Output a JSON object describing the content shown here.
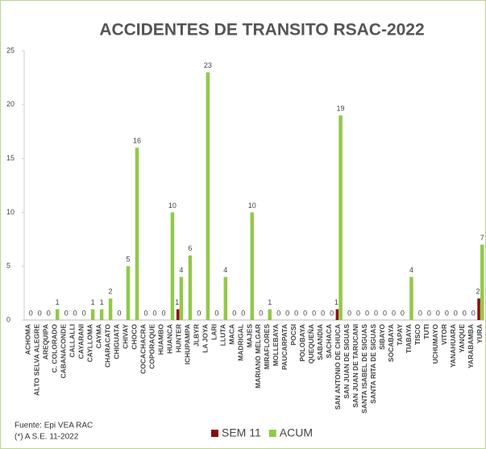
{
  "chart_data": {
    "type": "bar",
    "title": "ACCIDENTES DE TRANSITO RSAC-2022",
    "categories": [
      "ACHOMA",
      "ALTO SELVA ALEGRE",
      "AREQUIPA",
      "C. COLORADO",
      "CABANACONDE",
      "CALLALLI",
      "CAYARANI",
      "CAYLLOMA",
      "CAYMA",
      "CHARACATO",
      "CHIGUATA",
      "CHIVAY",
      "CHOCO",
      "COCACHACRA",
      "COPORAQUE",
      "HUAMBO",
      "HUANCA",
      "HUNTER",
      "ICHUPAMPA",
      "JLBYR",
      "LA JOYA",
      "LARI",
      "LLUTA",
      "MACA",
      "MADRIGAL",
      "MAJES",
      "MARIANO MELGAR",
      "MIRAFLORES",
      "MOLLEBAYA",
      "PAUCARPATA",
      "POCSI",
      "POLOBAYA",
      "QUEQUEÑA",
      "SABANDIA",
      "SACHACA",
      "SAN ANTONIO DE CHUCA",
      "SAN JUAN DE SIGUAS",
      "SAN JUAN DE TARUCANI",
      "SANTA ISABEL DE SIGUAS",
      "SANTA RITA DE SIGUAS",
      "SIBAYO",
      "SOCABAYA",
      "TAPAY",
      "TIABAYA",
      "TISCO",
      "TUTI",
      "UCHUMAYO",
      "VITOR",
      "YANAHUARA",
      "YANQUE",
      "YARABAMBA",
      "YURA"
    ],
    "series": [
      {
        "name": "SEM 11",
        "color": "#8b0a0a",
        "values": [
          0,
          0,
          0,
          0,
          0,
          0,
          0,
          0,
          0,
          0,
          0,
          0,
          0,
          0,
          0,
          0,
          0,
          1,
          0,
          0,
          0,
          0,
          0,
          0,
          0,
          0,
          0,
          0,
          0,
          0,
          0,
          0,
          0,
          0,
          0,
          1,
          0,
          0,
          0,
          0,
          0,
          0,
          0,
          0,
          0,
          0,
          0,
          0,
          0,
          0,
          0,
          2
        ]
      },
      {
        "name": "ACUM",
        "color": "#92c84a",
        "values": [
          0,
          0,
          0,
          1,
          0,
          0,
          0,
          1,
          1,
          2,
          0,
          5,
          16,
          0,
          0,
          0,
          10,
          4,
          6,
          0,
          23,
          0,
          4,
          0,
          0,
          10,
          0,
          1,
          0,
          0,
          0,
          0,
          0,
          0,
          0,
          19,
          0,
          0,
          0,
          0,
          0,
          0,
          0,
          4,
          0,
          0,
          0,
          0,
          0,
          0,
          0,
          7
        ]
      }
    ],
    "ylim": [
      0,
      25
    ],
    "yticks": [
      0,
      5,
      10,
      15,
      20,
      25
    ],
    "notes": [
      "Fuente:  Epi VEA RAC",
      "(*) A S.E. 11-2022"
    ]
  }
}
